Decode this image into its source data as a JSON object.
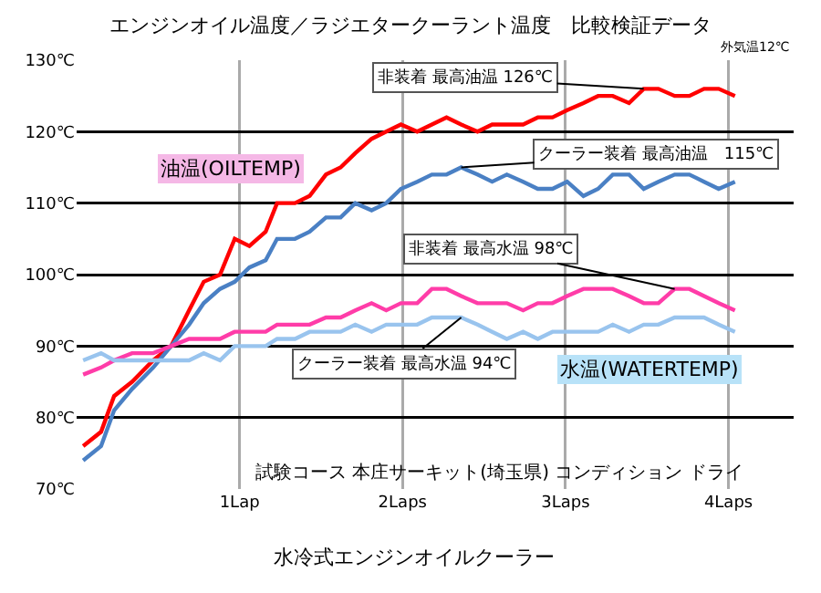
{
  "chart_data": {
    "type": "line",
    "title": "エンジンオイル温度／ラジエタークーラント温度　比較検証データ",
    "x": [
      0.04,
      0.15,
      0.23,
      0.34,
      0.47,
      0.58,
      0.69,
      0.78,
      0.88,
      0.97,
      1.06,
      1.16,
      1.23,
      1.34,
      1.43,
      1.53,
      1.62,
      1.71,
      1.81,
      1.9,
      1.99,
      2.09,
      2.18,
      2.27,
      2.36,
      2.46,
      2.55,
      2.64,
      2.74,
      2.83,
      2.92,
      3.01,
      3.11,
      3.2,
      3.29,
      3.39,
      3.48,
      3.57,
      3.67,
      3.76,
      3.85,
      3.94,
      4.04
    ],
    "series": [
      {
        "color": "#ff0000",
        "values": [
          76,
          78,
          83,
          85,
          88,
          90,
          95,
          99,
          100,
          105,
          104,
          106,
          110,
          110,
          111,
          114,
          115,
          117,
          119,
          120,
          121,
          120,
          121,
          122,
          121,
          120,
          121,
          121,
          121,
          122,
          122,
          123,
          124,
          125,
          125,
          124,
          126,
          126,
          125,
          125,
          126,
          126,
          125
        ]
      },
      {
        "color": "#4a80c4",
        "values": [
          74,
          76,
          81,
          84,
          87,
          90,
          93,
          96,
          98,
          99,
          101,
          102,
          105,
          105,
          106,
          108,
          108,
          110,
          109,
          110,
          112,
          113,
          114,
          114,
          115,
          114,
          113,
          114,
          113,
          112,
          112,
          113,
          111,
          112,
          114,
          114,
          112,
          113,
          114,
          114,
          113,
          112,
          113
        ]
      },
      {
        "color": "#ff3ca8",
        "values": [
          86,
          87,
          88,
          89,
          89,
          90,
          91,
          91,
          91,
          92,
          92,
          92,
          93,
          93,
          93,
          94,
          94,
          95,
          96,
          95,
          96,
          96,
          98,
          98,
          97,
          96,
          96,
          96,
          95,
          96,
          96,
          97,
          98,
          98,
          98,
          97,
          96,
          96,
          98,
          98,
          97,
          96,
          95
        ]
      },
      {
        "color": "#99c4ee",
        "values": [
          88,
          89,
          88,
          88,
          88,
          88,
          88,
          89,
          88,
          90,
          90,
          90,
          91,
          91,
          92,
          92,
          92,
          93,
          92,
          93,
          93,
          93,
          94,
          94,
          94,
          93,
          92,
          91,
          92,
          91,
          92,
          92,
          92,
          92,
          93,
          92,
          93,
          93,
          94,
          94,
          94,
          93,
          92
        ]
      }
    ],
    "xlim": [
      0,
      4.4
    ],
    "xticks": [
      {
        "value": 1,
        "label": "1Lap"
      },
      {
        "value": 2,
        "label": "2Laps"
      },
      {
        "value": 3,
        "label": "3Laps"
      },
      {
        "value": 4,
        "label": "4Laps"
      }
    ],
    "ylim": [
      70,
      130
    ],
    "yticks": [
      {
        "value": 70,
        "label": "70℃"
      },
      {
        "value": 80,
        "label": "80℃"
      },
      {
        "value": 90,
        "label": "90℃"
      },
      {
        "value": 100,
        "label": "100℃"
      },
      {
        "value": 110,
        "label": "110℃"
      },
      {
        "value": 120,
        "label": "120℃"
      },
      {
        "value": 130,
        "label": "130℃"
      }
    ],
    "grid": true,
    "line_style": "solid",
    "annotations": [
      "外気温12℃",
      "油温(OILTEMP)",
      "水温(WATERTEMP)",
      "試験コース 本庄サーキット(埼玉県) コンディション ドライ",
      "水冷式エンジンオイルクーラー",
      {
        "text": "非装着 最高油温 126℃",
        "x": 3.48,
        "y": 126
      },
      {
        "text": "クーラー装着 最高油温　115℃",
        "x": 2.36,
        "y": 115
      },
      {
        "text": "非装着 最高水温 98℃",
        "x": 3.67,
        "y": 98
      },
      {
        "text": "クーラー装着 最高水温 94℃",
        "x": 2.36,
        "y": 94
      }
    ]
  }
}
